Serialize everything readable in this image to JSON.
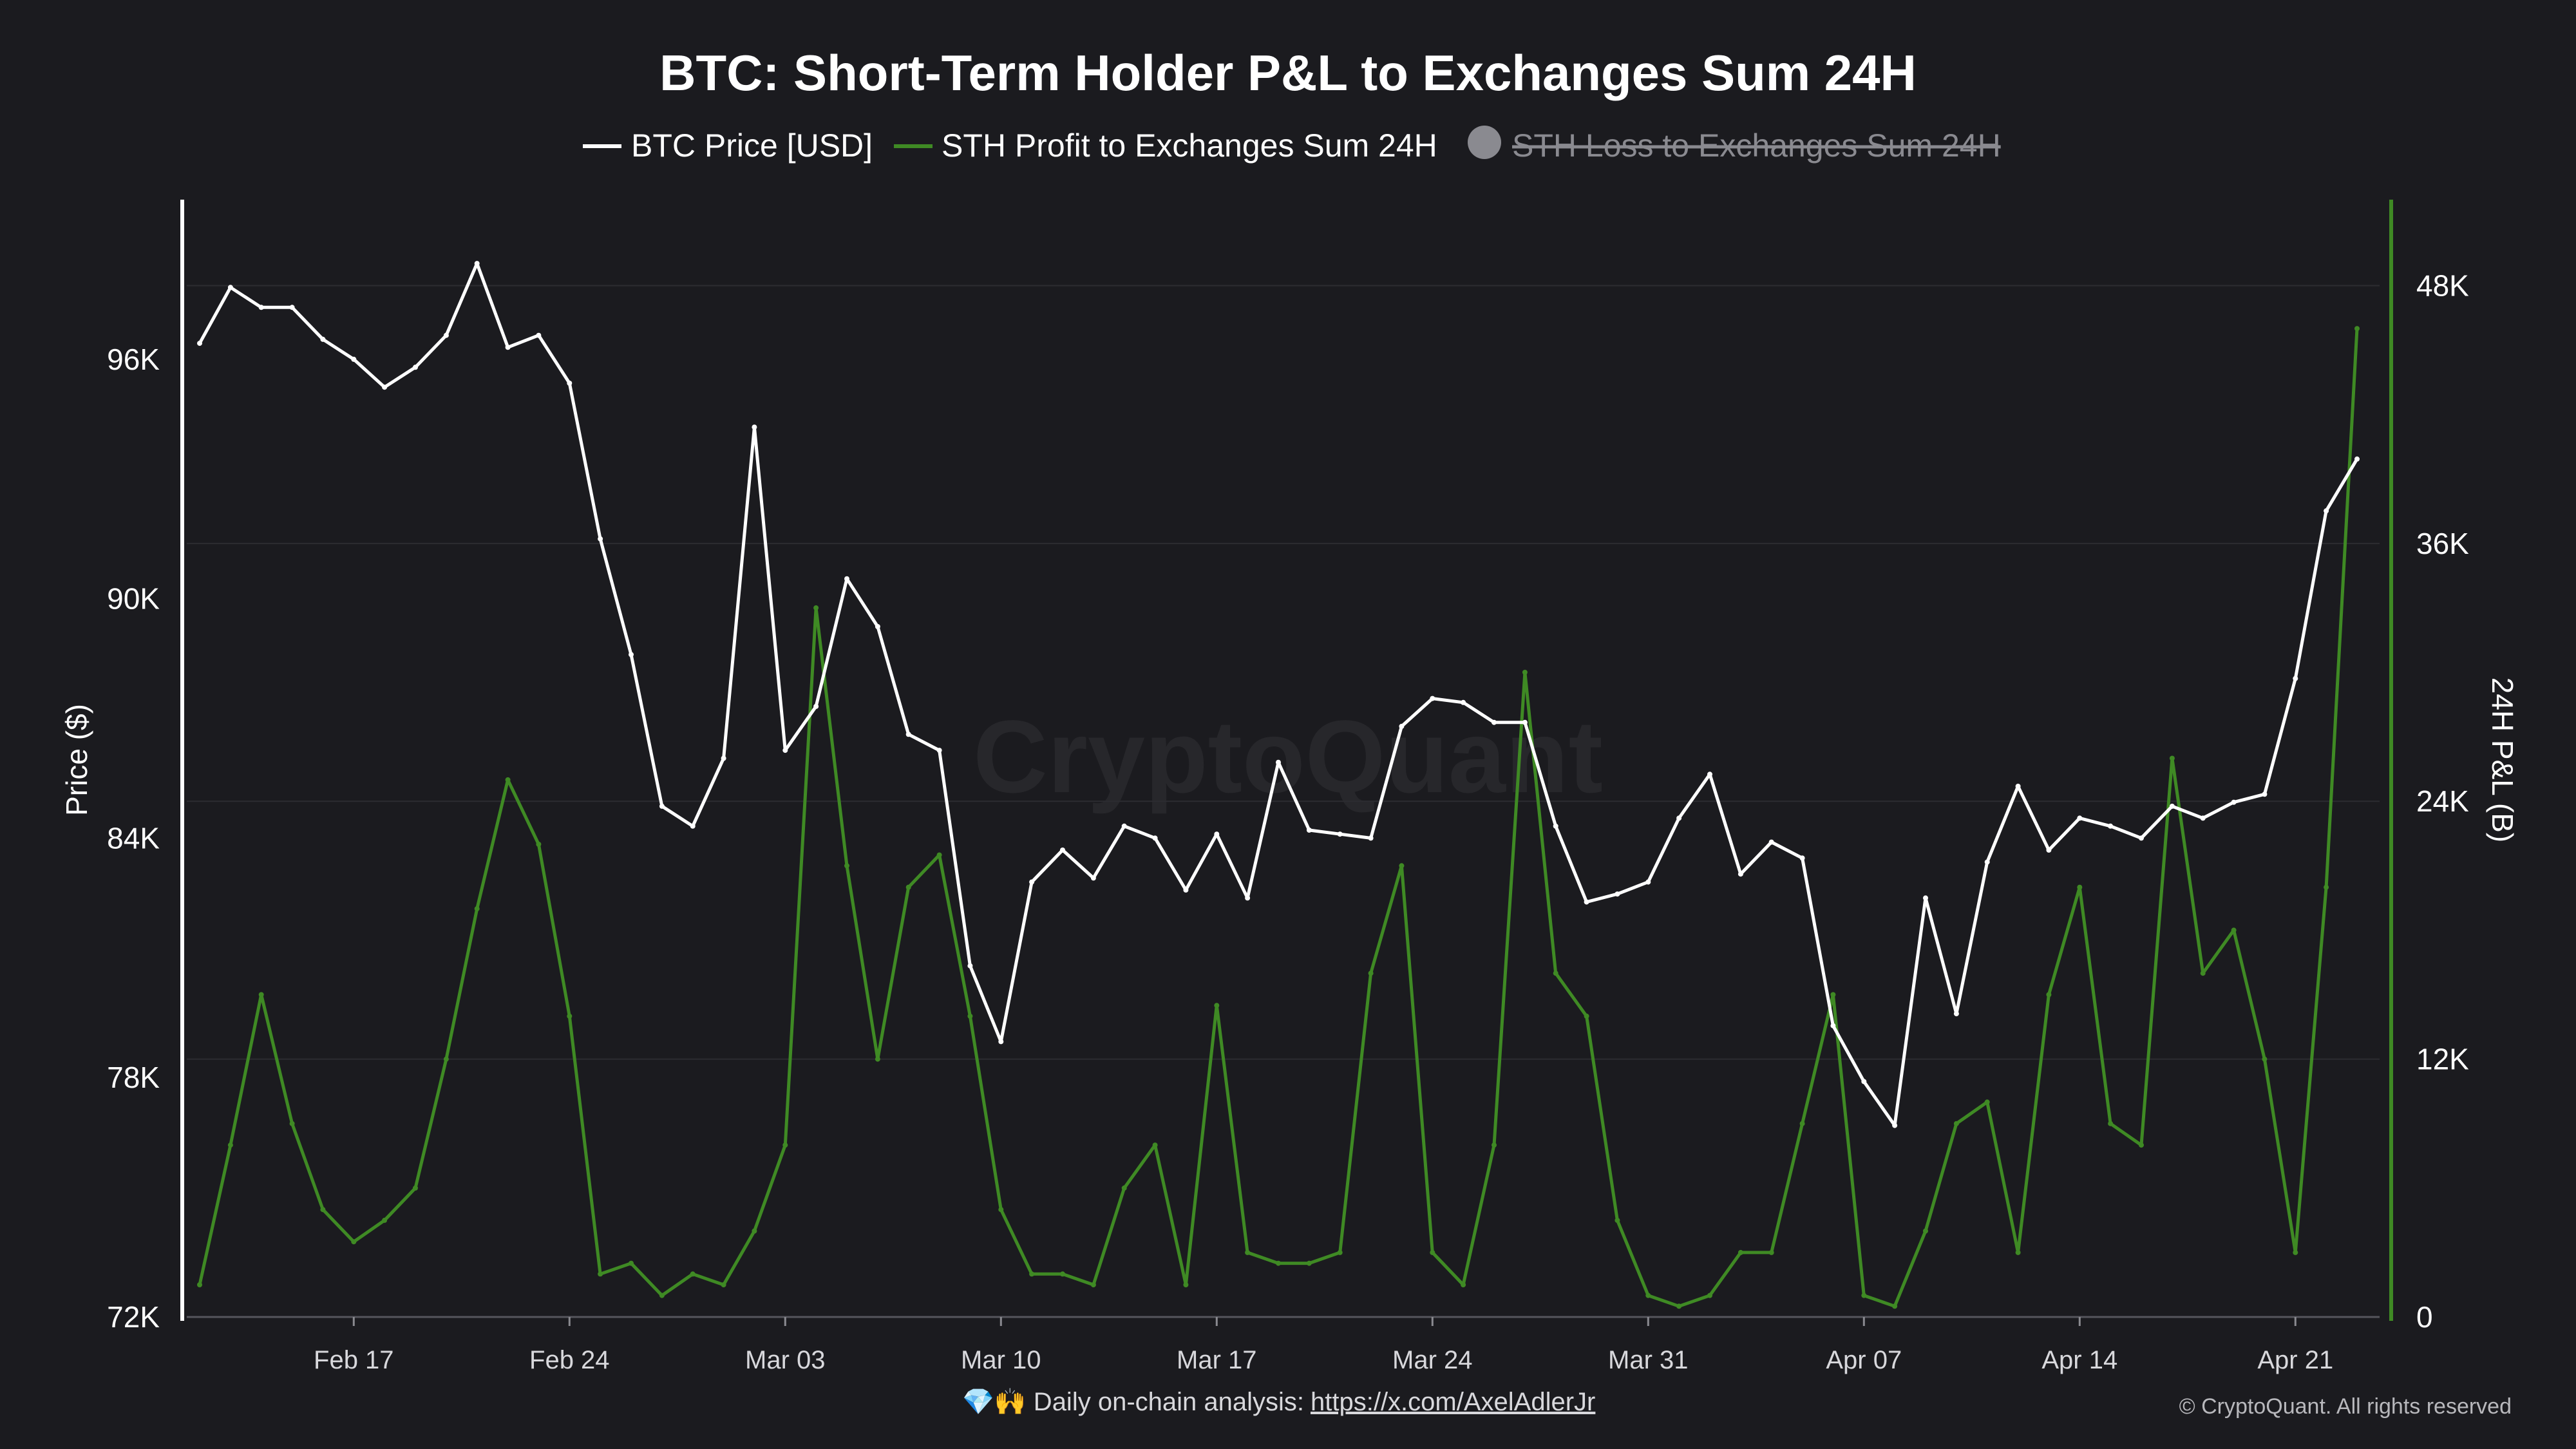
{
  "colors": {
    "background": "#1b1b1f",
    "price_line": "#ffffff",
    "profit_line": "#3f8a24",
    "loss_line": "#8a8a90",
    "grid": "#2c2c31"
  },
  "chart_data": {
    "type": "line",
    "title": "BTC: Short-Term Holder P&L to Exchanges Sum 24H",
    "watermark": "CryptoQuant",
    "legend_position": "top-center",
    "grid": true,
    "x_type": "date",
    "x_range": [
      "2025-02-12",
      "2025-04-23"
    ],
    "x_ticks": [
      "Feb 17",
      "Feb 24",
      "Mar 03",
      "Mar 10",
      "Mar 17",
      "Mar 24",
      "Mar 31",
      "Apr 07",
      "Apr 14",
      "Apr 21"
    ],
    "y_left": {
      "label": "Price ($)",
      "range": [
        72000,
        100000
      ],
      "ticks": [
        "72K",
        "78K",
        "84K",
        "90K",
        "96K"
      ]
    },
    "y_right": {
      "label": "24H P&L (B)",
      "range": [
        0,
        52000
      ],
      "ticks": [
        "0",
        "12K",
        "24K",
        "36K",
        "48K"
      ]
    },
    "series": [
      {
        "name": "BTC Price [USD]",
        "axis": "left",
        "x": [
          "2025-02-12",
          "2025-02-13",
          "2025-02-14",
          "2025-02-15",
          "2025-02-16",
          "2025-02-17",
          "2025-02-18",
          "2025-02-19",
          "2025-02-20",
          "2025-02-21",
          "2025-02-22",
          "2025-02-23",
          "2025-02-24",
          "2025-02-25",
          "2025-02-26",
          "2025-02-27",
          "2025-02-28",
          "2025-03-01",
          "2025-03-02",
          "2025-03-03",
          "2025-03-04",
          "2025-03-05",
          "2025-03-06",
          "2025-03-07",
          "2025-03-08",
          "2025-03-09",
          "2025-03-10",
          "2025-03-11",
          "2025-03-12",
          "2025-03-13",
          "2025-03-14",
          "2025-03-15",
          "2025-03-16",
          "2025-03-17",
          "2025-03-18",
          "2025-03-19",
          "2025-03-20",
          "2025-03-21",
          "2025-03-22",
          "2025-03-23",
          "2025-03-24",
          "2025-03-25",
          "2025-03-26",
          "2025-03-27",
          "2025-03-28",
          "2025-03-29",
          "2025-03-30",
          "2025-03-31",
          "2025-04-01",
          "2025-04-02",
          "2025-04-03",
          "2025-04-04",
          "2025-04-05",
          "2025-04-06",
          "2025-04-07",
          "2025-04-08",
          "2025-04-09",
          "2025-04-10",
          "2025-04-11",
          "2025-04-12",
          "2025-04-13",
          "2025-04-14",
          "2025-04-15",
          "2025-04-16",
          "2025-04-17",
          "2025-04-18",
          "2025-04-19",
          "2025-04-20",
          "2025-04-21",
          "2025-04-22",
          "2025-04-23"
        ],
        "y": [
          96400,
          97800,
          97300,
          97300,
          96500,
          96000,
          95300,
          95800,
          96600,
          98400,
          96300,
          96600,
          95400,
          91500,
          88600,
          84800,
          84300,
          86000,
          94300,
          86200,
          87300,
          90500,
          89300,
          86600,
          86200,
          80800,
          78900,
          82900,
          83700,
          83000,
          84300,
          84000,
          82700,
          84100,
          82500,
          85900,
          84200,
          84100,
          84000,
          86800,
          87500,
          87400,
          86900,
          86900,
          84300,
          82400,
          82600,
          82900,
          84500,
          85600,
          83100,
          83900,
          83500,
          79300,
          77900,
          76800,
          82500,
          79600,
          83400,
          85300,
          83700,
          84500,
          84300,
          84000,
          84800,
          84500,
          84900,
          85100,
          88000,
          92200,
          93500
        ],
        "color": "#ffffff"
      },
      {
        "name": "STH Profit to Exchanges Sum 24H",
        "axis": "right",
        "x": [
          "2025-02-12",
          "2025-02-13",
          "2025-02-14",
          "2025-02-15",
          "2025-02-16",
          "2025-02-17",
          "2025-02-18",
          "2025-02-19",
          "2025-02-20",
          "2025-02-21",
          "2025-02-22",
          "2025-02-23",
          "2025-02-24",
          "2025-02-25",
          "2025-02-26",
          "2025-02-27",
          "2025-02-28",
          "2025-03-01",
          "2025-03-02",
          "2025-03-03",
          "2025-03-04",
          "2025-03-05",
          "2025-03-06",
          "2025-03-07",
          "2025-03-08",
          "2025-03-09",
          "2025-03-10",
          "2025-03-11",
          "2025-03-12",
          "2025-03-13",
          "2025-03-14",
          "2025-03-15",
          "2025-03-16",
          "2025-03-17",
          "2025-03-18",
          "2025-03-19",
          "2025-03-20",
          "2025-03-21",
          "2025-03-22",
          "2025-03-23",
          "2025-03-24",
          "2025-03-25",
          "2025-03-26",
          "2025-03-27",
          "2025-03-28",
          "2025-03-29",
          "2025-03-30",
          "2025-03-31",
          "2025-04-01",
          "2025-04-02",
          "2025-04-03",
          "2025-04-04",
          "2025-04-05",
          "2025-04-06",
          "2025-04-07",
          "2025-04-08",
          "2025-04-09",
          "2025-04-10",
          "2025-04-11",
          "2025-04-12",
          "2025-04-13",
          "2025-04-14",
          "2025-04-15",
          "2025-04-16",
          "2025-04-17",
          "2025-04-18",
          "2025-04-19",
          "2025-04-20",
          "2025-04-21",
          "2025-04-22",
          "2025-04-23"
        ],
        "y": [
          1500,
          8000,
          15000,
          9000,
          5000,
          3500,
          4500,
          6000,
          12000,
          19000,
          25000,
          22000,
          14000,
          2000,
          2500,
          1000,
          2000,
          1500,
          4000,
          8000,
          33000,
          21000,
          12000,
          20000,
          21500,
          14000,
          5000,
          2000,
          2000,
          1500,
          6000,
          8000,
          1500,
          14500,
          3000,
          2500,
          2500,
          3000,
          16000,
          21000,
          3000,
          1500,
          8000,
          30000,
          16000,
          14000,
          4500,
          1000,
          500,
          1000,
          3000,
          3000,
          9000,
          15000,
          1000,
          500,
          4000,
          9000,
          10000,
          3000,
          15000,
          20000,
          9000,
          8000,
          26000,
          16000,
          18000,
          12000,
          3000,
          20000,
          46000
        ],
        "color": "#3f8a24"
      },
      {
        "name": "STH Loss to Exchanges Sum 24H",
        "axis": "right",
        "hidden": true,
        "color": "#8a8a90"
      }
    ]
  },
  "footer": {
    "text": "💎🙌 Daily on-chain analysis:",
    "link": "https://x.com/AxelAdlerJr",
    "copyright": "© CryptoQuant. All rights reserved"
  }
}
